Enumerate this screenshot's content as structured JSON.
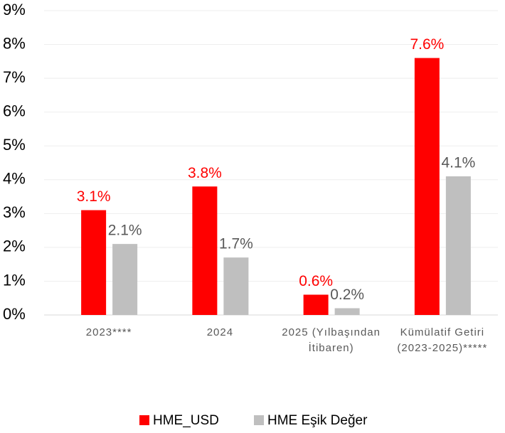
{
  "chart_data": {
    "type": "bar",
    "categories": [
      "2023****",
      "2024",
      "2025 (Yılbaşından İtibaren)",
      "Kümülatif Getiri (2023-2025)*****"
    ],
    "series": [
      {
        "name": "HME_USD",
        "color": "#ff0000",
        "values": [
          3.1,
          3.8,
          0.6,
          7.6
        ],
        "value_labels": [
          "3.1%",
          "3.8%",
          "0.6%",
          "7.6%"
        ]
      },
      {
        "name": "HME Eşik Değer",
        "color": "#bfbfbf",
        "values": [
          2.1,
          1.7,
          0.2,
          4.1
        ],
        "value_labels": [
          "2.1%",
          "1.7%",
          "0.2%",
          "4.1%"
        ]
      }
    ],
    "ylim": [
      0,
      9
    ],
    "yticks": [
      {
        "value": 0,
        "label": "0%"
      },
      {
        "value": 1,
        "label": "1%"
      },
      {
        "value": 2,
        "label": "2%"
      },
      {
        "value": 3,
        "label": "3%"
      },
      {
        "value": 4,
        "label": "4%"
      },
      {
        "value": 5,
        "label": "5%"
      },
      {
        "value": 6,
        "label": "6%"
      },
      {
        "value": 7,
        "label": "7%"
      },
      {
        "value": 8,
        "label": "8%"
      },
      {
        "value": 9,
        "label": "9%"
      }
    ],
    "grid": true,
    "legend": "bottom"
  }
}
